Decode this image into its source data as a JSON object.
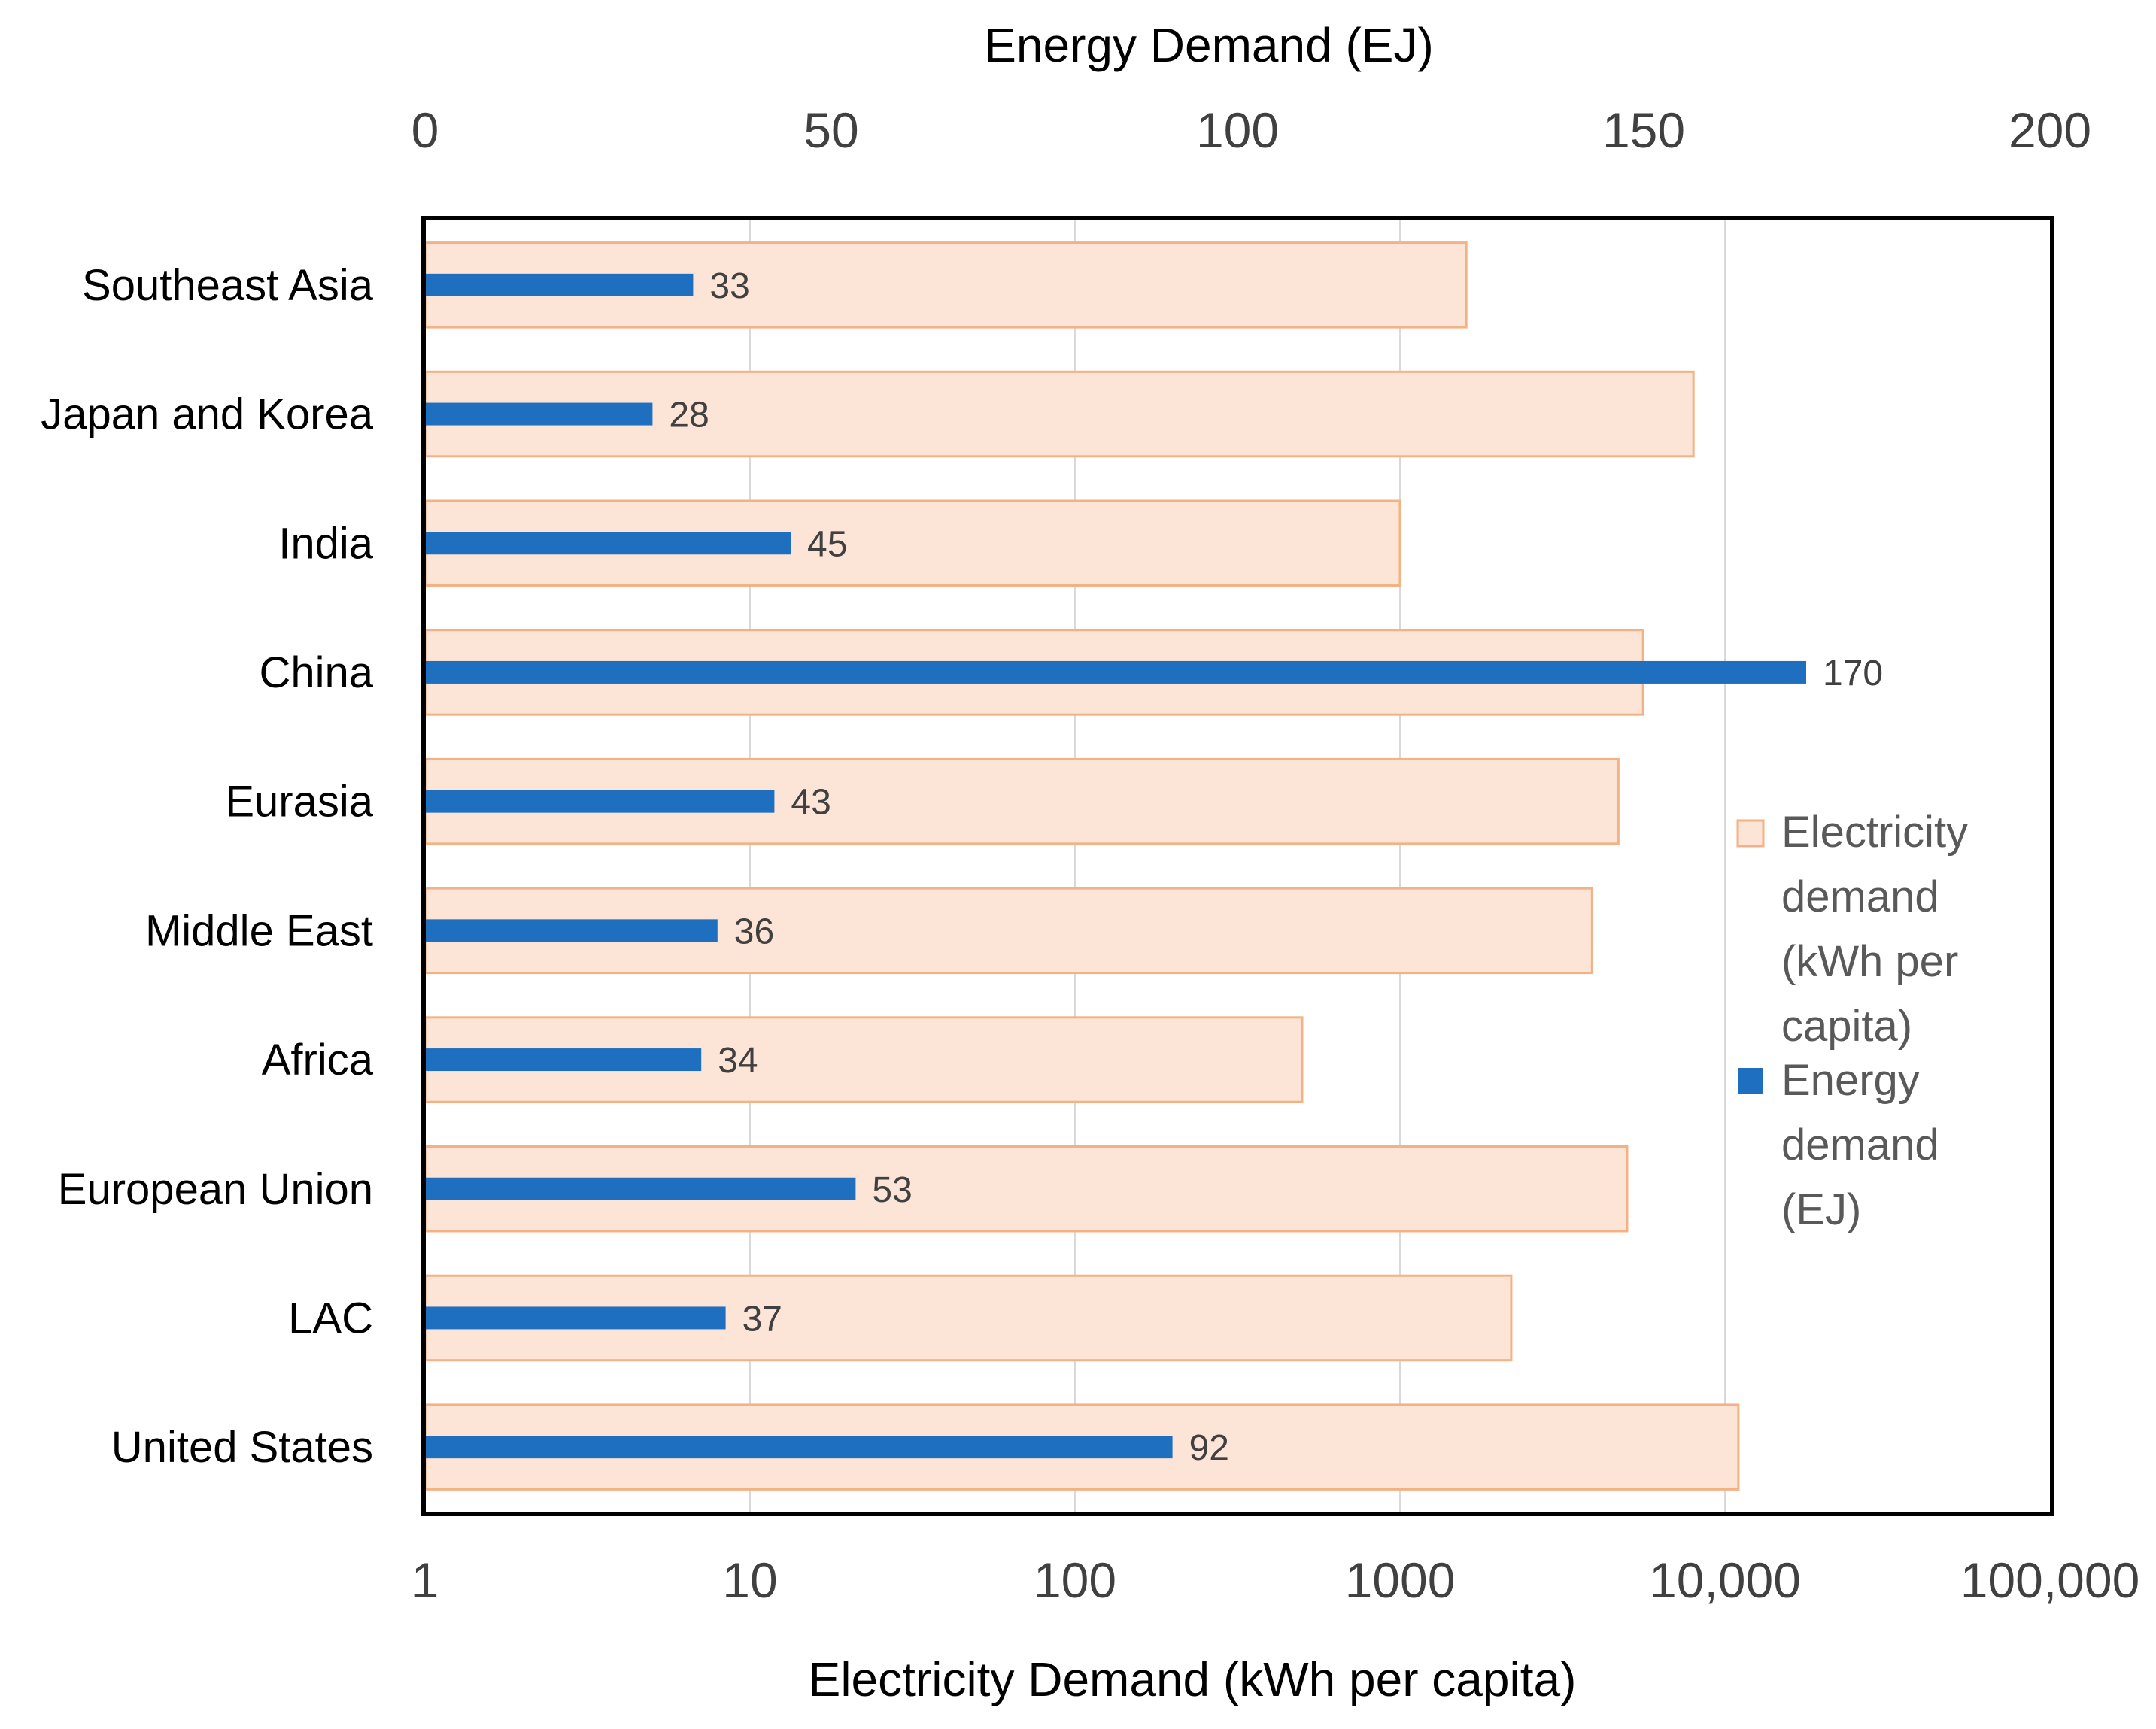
{
  "chart_data": {
    "type": "bar",
    "orientation": "horizontal",
    "categories": [
      "Southeast Asia",
      "Japan and Korea",
      "India",
      "China",
      "Eurasia",
      "Middle East",
      "Africa",
      "European Union",
      "LAC",
      "United States"
    ],
    "series": [
      {
        "name": "Electricity demand (kWh per capita)",
        "axis": "bottom",
        "color": "#FCE4D6",
        "edge_color": "#F4B183",
        "values": [
          1600,
          8000,
          1000,
          5600,
          4700,
          3900,
          500,
          5000,
          2200,
          11000
        ]
      },
      {
        "name": "Energy demand (EJ)",
        "axis": "top",
        "color": "#1F6FC0",
        "values": [
          33,
          28,
          45,
          170,
          43,
          36,
          34,
          53,
          37,
          92
        ],
        "data_labels": [
          "33",
          "28",
          "45",
          "170",
          "43",
          "36",
          "34",
          "53",
          "37",
          "92"
        ]
      }
    ],
    "top_axis": {
      "title": "Energy Demand (EJ)",
      "range": [
        0,
        200
      ],
      "ticks": [
        0,
        50,
        100,
        150,
        200
      ],
      "tick_labels": [
        "0",
        "50",
        "100",
        "150",
        "200"
      ]
    },
    "bottom_axis": {
      "title": "Electricity Demand (kWh per capita)",
      "scale": "log",
      "range": [
        1,
        100000
      ],
      "ticks": [
        1,
        10,
        100,
        1000,
        10000,
        100000
      ],
      "tick_labels": [
        "1",
        "10",
        "100",
        "1000",
        "10,000",
        "100,000"
      ]
    },
    "legend": {
      "position": "right",
      "entries": [
        {
          "lines": [
            "Electricity",
            "demand",
            "(kWh per",
            "capita)"
          ]
        },
        {
          "lines": [
            "Energy",
            "demand",
            "(EJ)"
          ]
        }
      ]
    },
    "grid": "vertical"
  }
}
